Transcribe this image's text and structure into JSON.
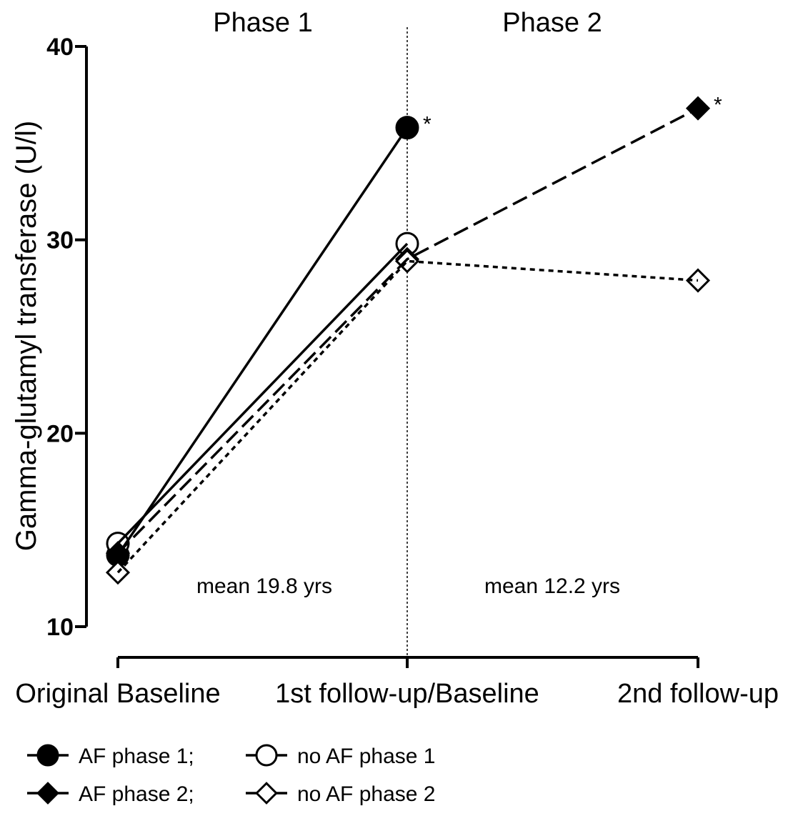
{
  "chart_data": {
    "type": "line",
    "title": "",
    "ylabel": "Gamma-glutamyl transferase (U/l)",
    "xlabel": "",
    "ylim": [
      10,
      40
    ],
    "yticks": [
      {
        "value": 10,
        "label": "10"
      },
      {
        "value": 20,
        "label": "20"
      },
      {
        "value": 30,
        "label": "30"
      },
      {
        "value": 40,
        "label": "40"
      }
    ],
    "categories": [
      "Original Baseline",
      "1st follow-up/Baseline",
      "2nd follow-up"
    ],
    "grid": false,
    "phases": [
      {
        "label": "Phase 1",
        "annotation": "mean 19.8 yrs"
      },
      {
        "label": "Phase 2",
        "annotation": "mean 12.2 yrs"
      }
    ],
    "series": [
      {
        "name": "AF phase 1;",
        "marker": "circle",
        "fill": "#000000",
        "dash": "",
        "values": [
          13.7,
          35.8,
          null
        ],
        "star_label": "*"
      },
      {
        "name": "no AF phase 1",
        "marker": "circle",
        "fill": "#ffffff",
        "dash": "",
        "values": [
          14.3,
          29.8,
          null
        ],
        "star_label": ""
      },
      {
        "name": "AF phase 2;",
        "marker": "diamond",
        "fill": "#000000",
        "dash": "22,9",
        "values": [
          13.8,
          29.0,
          36.8
        ],
        "star_label": "*"
      },
      {
        "name": "no AF phase 2",
        "marker": "diamond",
        "fill": "#ffffff",
        "dash": "7,6",
        "values": [
          12.8,
          28.9,
          27.9
        ],
        "star_label": ""
      }
    ]
  }
}
